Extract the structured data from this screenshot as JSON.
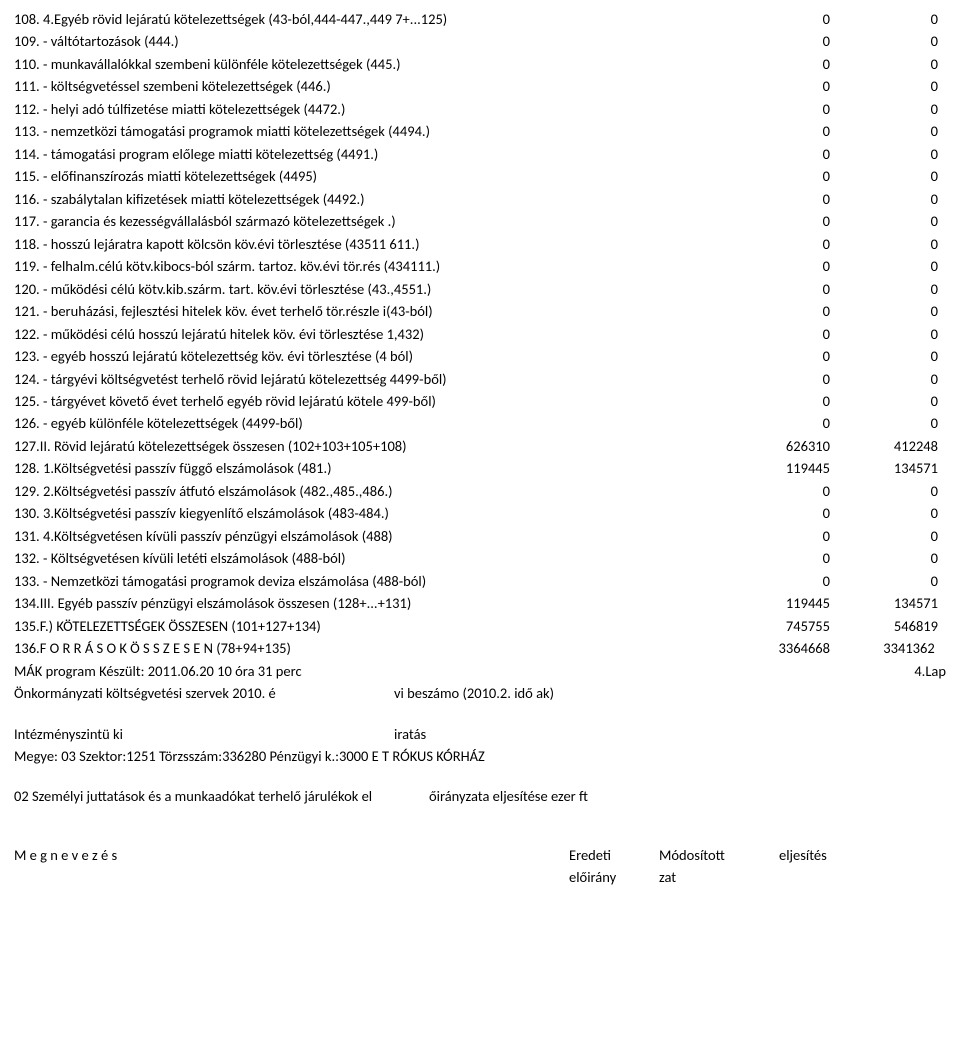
{
  "rows": [
    {
      "label": "108. 4.Egyéb rövid lejáratú kötelezettségek (43-ból,444-447.,449 7+...125)",
      "v1": "0",
      "v2": "0"
    },
    {
      "label": "109.  - váltótartozások (444.)",
      "v1": "0",
      "v2": "0"
    },
    {
      "label": "110.  - munkavállalókkal szembeni különféle kötelezettségek (445.)",
      "v1": "0",
      "v2": "0"
    },
    {
      "label": "111.  - költségvetéssel szembeni kötelezettségek (446.)",
      "v1": "0",
      "v2": "0"
    },
    {
      "label": "112.  - helyi adó túlfizetése miatti kötelezettségek (4472.)",
      "v1": "0",
      "v2": "0"
    },
    {
      "label": "113.  - nemzetközi támogatási programok miatti kötelezettségek (4494.)",
      "v1": "0",
      "v2": "0"
    },
    {
      "label": "114.  - támogatási program előlege miatti kötelezettség (4491.)",
      "v1": "0",
      "v2": "0"
    },
    {
      "label": "115.  - előfinanszírozás miatti kötelezettségek (4495)",
      "v1": "0",
      "v2": "0"
    },
    {
      "label": "116.  - szabálytalan kifizetések miatti kötelezettségek (4492.)",
      "v1": "0",
      "v2": "0"
    },
    {
      "label": "117.  - garancia és kezességvállalásból származó kötelezettségek .)",
      "v1": "0",
      "v2": "0"
    },
    {
      "label": "118.  - hosszú lejáratra kapott kölcsön köv.évi törlesztése (43511 611.)",
      "v1": "0",
      "v2": "0"
    },
    {
      "label": "119.  - felhalm.célú kötv.kibocs-ból szárm. tartoz. köv.évi tör.rés (434111.)",
      "v1": "0",
      "v2": "0"
    },
    {
      "label": "120.  - működési célú kötv.kib.szárm. tart. köv.évi törlesztése (43.,4551.)",
      "v1": "0",
      "v2": "0"
    },
    {
      "label": "121.  - beruházási, fejlesztési hitelek köv. évet terhelő tör.részle i(43-ból)",
      "v1": "0",
      "v2": "0"
    },
    {
      "label": "122.  - működési célú hosszú lejáratú hitelek köv. évi törlesztése 1,432)",
      "v1": "0",
      "v2": "0"
    },
    {
      "label": "123.  - egyéb hosszú lejáratú kötelezettség köv. évi törlesztése (4 ból)",
      "v1": "0",
      "v2": "0"
    },
    {
      "label": "124.  - tárgyévi költségvetést terhelő rövid lejáratú kötelezettség 4499-ből)",
      "v1": "0",
      "v2": "0"
    },
    {
      "label": "125.  - tárgyévet követő évet terhelő egyéb rövid lejáratú kötele 499-ből)",
      "v1": "0",
      "v2": "0"
    },
    {
      "label": "126.  - egyéb különféle kötelezettségek (4499-ből)",
      "v1": "0",
      "v2": "0"
    },
    {
      "label": "127.II. Rövid lejáratú kötelezettségek összesen (102+103+105+108)",
      "v1": "626310",
      "v2": "412248"
    },
    {
      "label": "128.  1.Költségvetési passzív függő elszámolások (481.)",
      "v1": "119445",
      "v2": "134571"
    },
    {
      "label": "129.  2.Költségvetési passzív átfutó elszámolások (482.,485.,486.)",
      "v1": "0",
      "v2": "0"
    },
    {
      "label": "130.  3.Költségvetési passzív kiegyenlítő elszámolások (483-484.)",
      "v1": "0",
      "v2": "0"
    },
    {
      "label": "131.  4.Költségvetésen kívüli passzív pénzügyi elszámolások (488)",
      "v1": "0",
      "v2": "0"
    },
    {
      "label": "132.  - Költségvetésen kívüli letéti elszámolások (488-ból)",
      "v1": "0",
      "v2": "0"
    },
    {
      "label": "133.  - Nemzetközi támogatási programok deviza elszámolása (488-ból)",
      "v1": "0",
      "v2": "0"
    },
    {
      "label": "134.III. Egyéb passzív pénzügyi elszámolások összesen (128+...+131)",
      "v1": "119445",
      "v2": "134571"
    },
    {
      "label": "135.F.) KÖTELEZETTSÉGEK ÖSSZESEN (101+127+134)",
      "v1": "745755",
      "v2": "546819"
    },
    {
      "label": "136.F O R R Á S O K  Ö S S Z E S E N  (78+94+135)",
      "v1": "3364668",
      "v2": "3341362 "
    }
  ],
  "footer": {
    "program_line": "MÁK program Készült: 2011.06.20  10 óra 31 perc",
    "page_note": "4.Lap",
    "beszamolo_left": "Önkormányzati költségvetési szervek 2010. é",
    "beszamolo_right": "vi beszámo (2010.2. idő ak)",
    "intezmeny_left": "Intézményszintü ki",
    "intezmeny_right": "iratás",
    "megye": "Megye: 03  Szektor:1251  Törzsszám:336280 Pénzügyi k.:3000 E T RÓKUS KÓRHÁZ",
    "section_left": "02 Személyi juttatások és a munkaadókat terhelő járulékok el",
    "section_right": "őirányzata  eljesítése    ezer ft",
    "headers": {
      "line1": {
        "c1": "M e g n e v e z é s",
        "c2": "Eredeti",
        "c3": "Módosított",
        "c4": "eljesítés"
      },
      "line2": {
        "c1": "",
        "c2": "előirány",
        "c3": "zat",
        "c4": ""
      }
    }
  }
}
